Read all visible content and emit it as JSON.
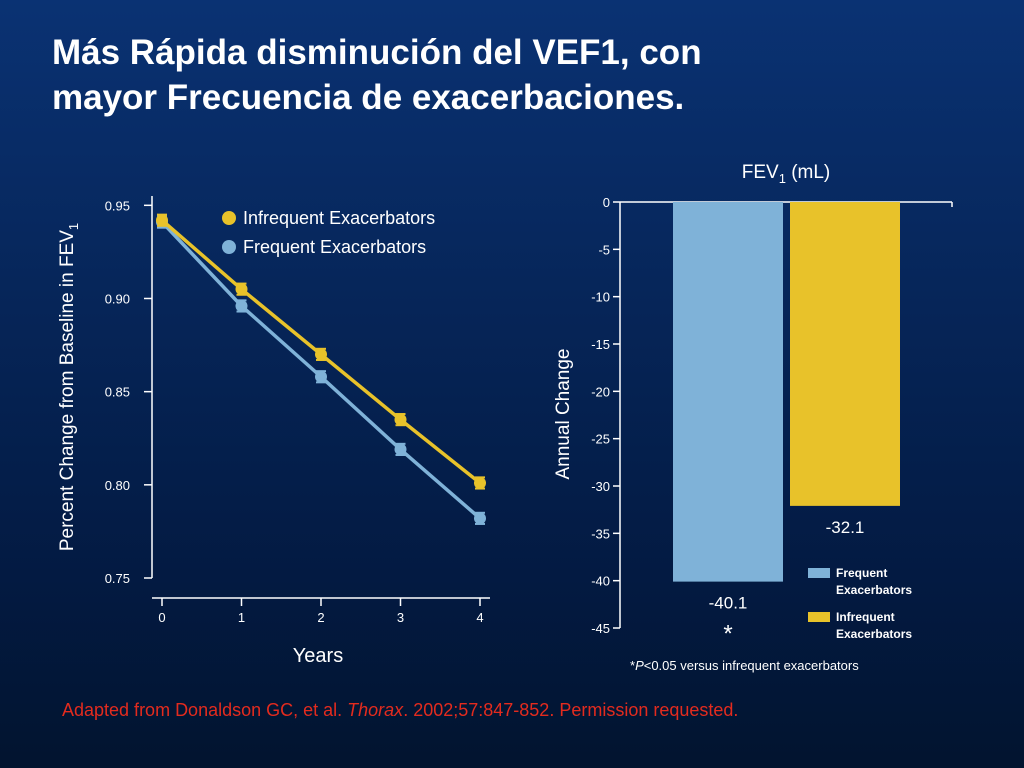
{
  "slide": {
    "title_line1": "Más Rápida disminución del VEF1, con",
    "title_line2": "mayor Frecuencia de exacerbaciones.",
    "citation_prefix": "Adapted from Donaldson GC, et al. ",
    "citation_journal": "Thorax",
    "citation_suffix": ". 2002;57:847-852. Permission requested.",
    "footnote_star": "*",
    "footnote_p": "P",
    "footnote_text": "<0.05 versus infrequent exacerbators"
  },
  "colors": {
    "frequent": "#7fb2d8",
    "infrequent": "#e8c22a",
    "citation": "#e32b1e"
  },
  "chart_data": [
    {
      "type": "line",
      "title": "",
      "xlabel": "Years",
      "ylabel_main": "Percent Change from Baseline in FEV",
      "ylabel_sub": "1",
      "x": [
        0,
        1,
        2,
        3,
        4
      ],
      "xticks": [
        "0",
        "1",
        "2",
        "3",
        "4"
      ],
      "yticks": [
        "0.95",
        "0.90",
        "0.85",
        "0.80",
        "0.75"
      ],
      "ylim": [
        0.75,
        0.955
      ],
      "legend_position": "top-center",
      "series": [
        {
          "name": "Infrequent Exacerbators",
          "color": "#e8c22a",
          "values": [
            0.942,
            0.905,
            0.87,
            0.835,
            0.801
          ],
          "error": [
            0.003,
            0.003,
            0.003,
            0.003,
            0.003
          ]
        },
        {
          "name": "Frequent Exacerbators",
          "color": "#7fb2d8",
          "values": [
            0.941,
            0.896,
            0.858,
            0.819,
            0.782
          ],
          "error": [
            0.003,
            0.003,
            0.003,
            0.003,
            0.003
          ]
        }
      ]
    },
    {
      "type": "bar",
      "title_main": "FEV",
      "title_sub": "1",
      "title_unit": " (mL)",
      "ylabel": "Annual Change",
      "ylim": [
        -45,
        0
      ],
      "yticks": [
        "0",
        "-5",
        "-10",
        "-15",
        "-20",
        "-25",
        "-30",
        "-35",
        "-40",
        "-45"
      ],
      "legend_position": "bottom-right",
      "categories": [
        "Frequent Exacerbators",
        "Infrequent Exacerbators"
      ],
      "legend": [
        {
          "line1": "Frequent",
          "line2": "Exacerbators",
          "color": "#7fb2d8"
        },
        {
          "line1": "Infrequent",
          "line2": "Exacerbators",
          "color": "#e8c22a"
        }
      ],
      "bars": [
        {
          "value": -40.1,
          "label": "-40.1",
          "annotation": "*",
          "color": "#7fb2d8"
        },
        {
          "value": -32.1,
          "label": "-32.1",
          "annotation": "",
          "color": "#e8c22a"
        }
      ]
    }
  ]
}
